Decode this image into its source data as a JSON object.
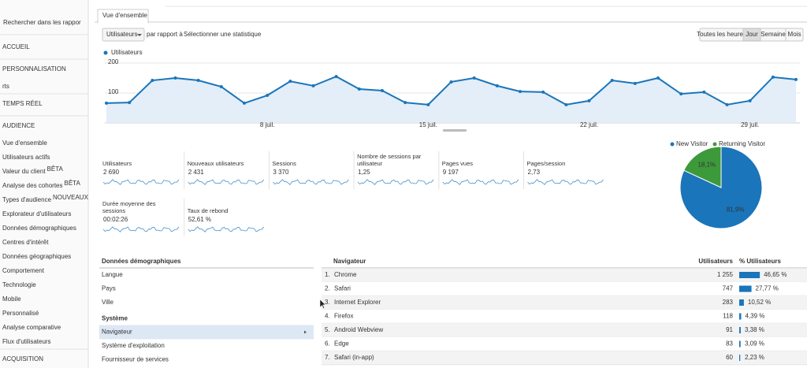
{
  "sidebar": {
    "search": "Rechercher dans les rappor",
    "sections": [
      {
        "title": "ACCUEIL"
      },
      {
        "title": "PERSONNALISATION",
        "items": [
          {
            "text": "rts"
          }
        ]
      },
      {
        "title": "TEMPS RÉEL"
      },
      {
        "title": "AUDIENCE",
        "items": [
          {
            "text": "Vue d'ensemble"
          },
          {
            "text": "Utilisateurs actifs"
          },
          {
            "text": "Valeur du client",
            "badge": "BÊTA"
          },
          {
            "text": "Analyse des cohortes",
            "badge": "BÊTA"
          },
          {
            "text": "Types d'audience",
            "badge": "NOUVEAUX"
          },
          {
            "text": "Explorateur d'utilisateurs"
          },
          {
            "text": "Données démographiques"
          },
          {
            "text": "Centres d'intérêt"
          },
          {
            "text": "Données géographiques"
          },
          {
            "text": "Comportement"
          },
          {
            "text": "Technologie"
          },
          {
            "text": "Mobile"
          },
          {
            "text": "Personnalisé"
          },
          {
            "text": "Analyse comparative"
          },
          {
            "text": "Flux d'utilisateurs"
          }
        ]
      },
      {
        "title": "ACQUISITION"
      }
    ]
  },
  "tab": "Vue d'ensemble",
  "controls": {
    "metric": "Utilisateurs",
    "compare": "par rapport à",
    "select": "Sélectionner une statistique",
    "periods": [
      "Toutes les heures",
      "Jour",
      "Semaine",
      "Mois"
    ],
    "active_period": "Jour"
  },
  "users_chart": {
    "legend": "Utilisateurs",
    "color": "#1a75bb",
    "categories": [
      null,
      null,
      null,
      null,
      null,
      null,
      null,
      "8 juil.",
      null,
      null,
      null,
      null,
      null,
      null,
      "15 juil.",
      null,
      null,
      null,
      null,
      null,
      null,
      "22 juil.",
      null,
      null,
      null,
      null,
      null,
      null,
      "29 juil.",
      null,
      null
    ],
    "values": [
      66,
      68,
      142,
      150,
      142,
      121,
      66,
      92,
      139,
      124,
      155,
      113,
      108,
      68,
      61,
      137,
      150,
      124,
      105,
      103,
      61,
      74,
      142,
      132,
      150,
      97,
      103,
      61,
      74,
      153,
      145
    ],
    "ylim": [
      0,
      200
    ],
    "yticks": [
      100,
      200
    ],
    "grid": true
  },
  "metrics": [
    {
      "label": "Utilisateurs",
      "value": "2 690"
    },
    {
      "label": "Nouveaux utilisateurs",
      "value": "2 431"
    },
    {
      "label": "Sessions",
      "value": "3 370"
    },
    {
      "label": "Nombre de sessions par utilisateur",
      "value": "1,25"
    },
    {
      "label": "Pages vues",
      "value": "9 197"
    },
    {
      "label": "Pages/session",
      "value": "2,73"
    },
    {
      "label": "Durée moyenne des sessions",
      "value": "00:02:26"
    },
    {
      "label": "Taux de rebond",
      "value": "52,61 %"
    }
  ],
  "pie": {
    "categories": [
      "New Visitor",
      "Returning Visitor"
    ],
    "values": [
      81.9,
      18.1
    ],
    "value_labels": [
      "81,9%",
      "18,1%"
    ],
    "colors": [
      "#1a75bb",
      "#3d9a3a"
    ]
  },
  "dimensions": {
    "groups": [
      {
        "title": "Données démographiques",
        "items": [
          "Langue",
          "Pays",
          "Ville"
        ]
      },
      {
        "title": "Système",
        "items": [
          "Navigateur",
          "Système d'exploitation",
          "Fournisseur de services"
        ]
      }
    ],
    "selected": "Navigateur"
  },
  "table": {
    "headers": [
      "Navigateur",
      "Utilisateurs",
      "% Utilisateurs"
    ],
    "rows": [
      {
        "rank": "1.",
        "name": "Chrome",
        "users": "1 255",
        "pct": {
          "value": 46.65,
          "label": "46,65 %"
        }
      },
      {
        "rank": "2.",
        "name": "Safari",
        "users": "747",
        "pct": {
          "value": 27.77,
          "label": "27,77 %"
        }
      },
      {
        "rank": "3.",
        "name": "Internet Explorer",
        "users": "283",
        "pct": {
          "value": 10.52,
          "label": "10,52 %"
        }
      },
      {
        "rank": "4.",
        "name": "Firefox",
        "users": "118",
        "pct": {
          "value": 4.39,
          "label": "4,39 %"
        }
      },
      {
        "rank": "5.",
        "name": "Android Webview",
        "users": "91",
        "pct": {
          "value": 3.38,
          "label": "3,38 %"
        }
      },
      {
        "rank": "6.",
        "name": "Edge",
        "users": "83",
        "pct": {
          "value": 3.09,
          "label": "3,09 %"
        }
      },
      {
        "rank": "7.",
        "name": "Safari (in-app)",
        "users": "60",
        "pct": {
          "value": 2.23,
          "label": "2,23 %"
        }
      }
    ]
  }
}
